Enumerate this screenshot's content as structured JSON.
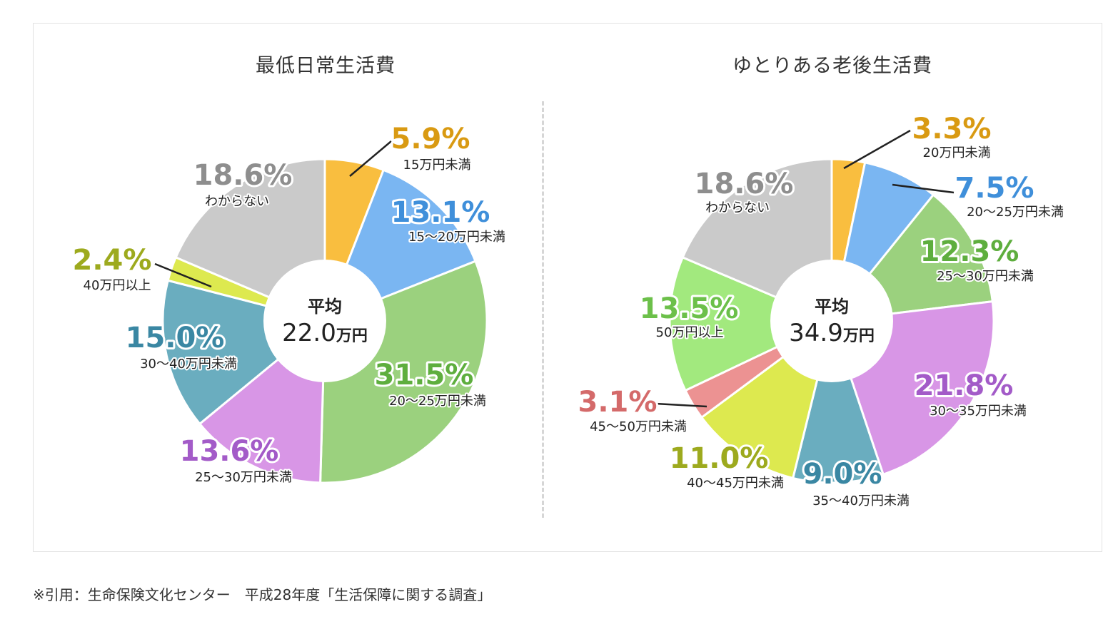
{
  "footnote": "※引用：生命保険文化センター　平成28年度「生活保障に関する調査」",
  "chart_data": [
    {
      "type": "donut",
      "title": "最低日常生活費",
      "center_label": "平均",
      "center_value": "22.0",
      "center_unit": "万円",
      "slices": [
        {
          "label": "15万円未満",
          "value": 5.9,
          "value_text": "5.9%",
          "color": "#F9BE3F",
          "text_color": "#D99A12"
        },
        {
          "label": "15〜20万円未満",
          "value": 13.1,
          "value_text": "13.1%",
          "color": "#7AB6F2",
          "text_color": "#3F8FDA"
        },
        {
          "label": "20〜25万円未満",
          "value": 31.5,
          "value_text": "31.5%",
          "color": "#9BD17E",
          "text_color": "#5EAE3E"
        },
        {
          "label": "25〜30万円未満",
          "value": 13.6,
          "value_text": "13.6%",
          "color": "#D896E6",
          "text_color": "#A35BC8"
        },
        {
          "label": "30〜40万円未満",
          "value": 15.0,
          "value_text": "15.0%",
          "color": "#6AADBF",
          "text_color": "#3A87A3"
        },
        {
          "label": "40万円以上",
          "value": 2.4,
          "value_text": "2.4%",
          "color": "#DDE94F",
          "text_color": "#9DAA1E"
        },
        {
          "label": "わからない",
          "value": 18.6,
          "value_text": "18.6%",
          "color": "#CACACA",
          "text_color": "#8E8E8E"
        }
      ]
    },
    {
      "type": "donut",
      "title": "ゆとりある老後生活費",
      "center_label": "平均",
      "center_value": "34.9",
      "center_unit": "万円",
      "slices": [
        {
          "label": "20万円未満",
          "value": 3.3,
          "value_text": "3.3%",
          "color": "#F9BE3F",
          "text_color": "#D99A12"
        },
        {
          "label": "20〜25万円未満",
          "value": 7.5,
          "value_text": "7.5%",
          "color": "#7AB6F2",
          "text_color": "#3F8FDA"
        },
        {
          "label": "25〜30万円未満",
          "value": 12.3,
          "value_text": "12.3%",
          "color": "#9BD17E",
          "text_color": "#5EAE3E"
        },
        {
          "label": "30〜35万円未満",
          "value": 21.8,
          "value_text": "21.8%",
          "color": "#D896E6",
          "text_color": "#A35BC8"
        },
        {
          "label": "35〜40万円未満",
          "value": 9.0,
          "value_text": "9.0%",
          "color": "#6AADBF",
          "text_color": "#3A87A3"
        },
        {
          "label": "40〜45万円未満",
          "value": 11.0,
          "value_text": "11.0%",
          "color": "#DDE94F",
          "text_color": "#9DAA1E"
        },
        {
          "label": "45〜50万円未満",
          "value": 3.1,
          "value_text": "3.1%",
          "color": "#EC9292",
          "text_color": "#D46A6A"
        },
        {
          "label": "50万円以上",
          "value": 13.5,
          "value_text": "13.5%",
          "color": "#A2E97E",
          "text_color": "#6CC04A"
        },
        {
          "label": "わからない",
          "value": 18.6,
          "value_text": "18.6%",
          "color": "#CACACA",
          "text_color": "#8E8E8E"
        }
      ]
    }
  ]
}
